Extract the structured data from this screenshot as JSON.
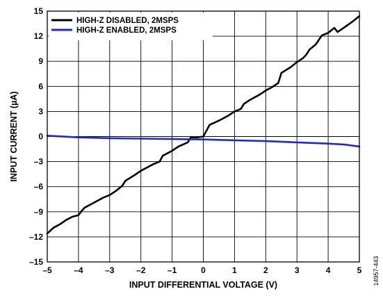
{
  "figure_id": "14957-443",
  "chart_data": {
    "type": "line",
    "title": "",
    "xlabel": "INPUT DIFFERENTIAL VOLTAGE (V)",
    "ylabel": "INPUT CURRENT (µA)",
    "xlim": [
      -5,
      5
    ],
    "ylim": [
      -15,
      15
    ],
    "x_ticks": [
      -5,
      -4,
      -3,
      -2,
      -1,
      0,
      1,
      2,
      3,
      4,
      5
    ],
    "y_ticks": [
      -15,
      -12,
      -9,
      -6,
      -3,
      0,
      3,
      6,
      9,
      12,
      15
    ],
    "x_tick_labels": [
      "–5",
      "–4",
      "–3",
      "–2",
      "–1",
      "0",
      "1",
      "2",
      "3",
      "4",
      "5"
    ],
    "y_tick_labels": [
      "–15",
      "–12",
      "–9",
      "–6",
      "–3",
      "0",
      "3",
      "6",
      "9",
      "12",
      "15"
    ],
    "grid": true,
    "legend_position": "top-left",
    "series": [
      {
        "name": "HIGH-Z DISABLED, 2MSPS",
        "color": "#000000",
        "x": [
          -5.0,
          -4.8,
          -4.6,
          -4.4,
          -4.2,
          -4.0,
          -3.9,
          -3.8,
          -3.5,
          -3.2,
          -3.0,
          -2.8,
          -2.6,
          -2.5,
          -2.2,
          -2.0,
          -1.8,
          -1.6,
          -1.4,
          -1.3,
          -1.2,
          -1.0,
          -0.8,
          -0.5,
          -0.4,
          -0.2,
          0.0,
          0.1,
          0.2,
          0.5,
          0.8,
          1.0,
          1.2,
          1.3,
          1.5,
          1.8,
          2.0,
          2.2,
          2.4,
          2.5,
          2.8,
          3.0,
          3.2,
          3.3,
          3.4,
          3.6,
          3.8,
          4.0,
          4.2,
          4.3,
          4.5,
          4.8,
          5.0
        ],
        "y": [
          -11.6,
          -10.9,
          -10.5,
          -10.0,
          -9.6,
          -9.4,
          -8.9,
          -8.5,
          -7.9,
          -7.3,
          -7.0,
          -6.5,
          -5.9,
          -5.3,
          -4.6,
          -4.1,
          -3.7,
          -3.3,
          -3.0,
          -2.3,
          -2.1,
          -1.7,
          -1.2,
          -0.7,
          -0.1,
          -0.1,
          0.0,
          0.7,
          1.4,
          1.9,
          2.5,
          3.0,
          3.3,
          3.9,
          4.4,
          5.0,
          5.5,
          5.9,
          6.4,
          7.6,
          8.3,
          8.9,
          9.4,
          9.8,
          10.4,
          11.0,
          12.1,
          12.4,
          13.0,
          12.5,
          13.0,
          13.8,
          14.4
        ]
      },
      {
        "name": "HIGH-Z ENABLED, 2MSPS",
        "color": "#1f28d6",
        "x": [
          -5,
          -4,
          -3,
          -2,
          -1,
          0,
          1,
          2,
          3,
          4,
          4.5,
          5
        ],
        "y": [
          0.1,
          -0.1,
          -0.2,
          -0.25,
          -0.3,
          -0.35,
          -0.45,
          -0.55,
          -0.7,
          -0.85,
          -0.95,
          -1.2
        ]
      }
    ]
  }
}
